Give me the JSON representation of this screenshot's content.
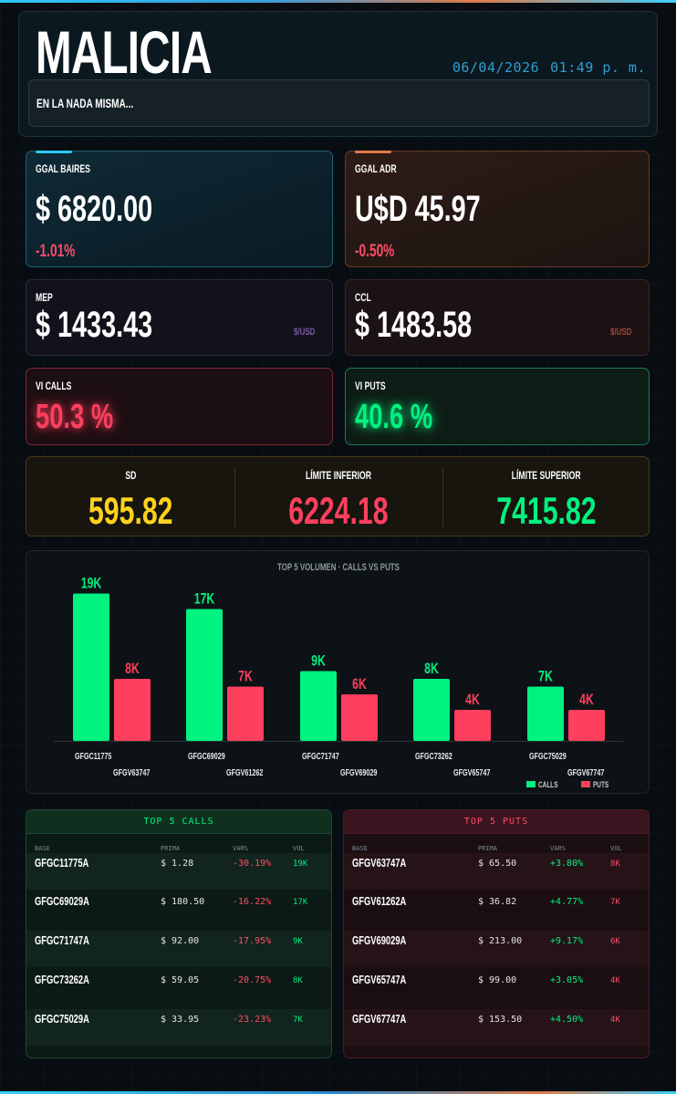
{
  "header": {
    "brand": "MALICIA",
    "date": "06/04/2026",
    "time": "01:49 p. m.",
    "tagline": "EN LA NADA MISMA..."
  },
  "cards": {
    "ggal_baires": {
      "label": "GGAL BAIRES",
      "value": "$ 6820.00",
      "change": "-1.01%"
    },
    "ggal_adr": {
      "label": "GGAL ADR",
      "value": "U$D 45.97",
      "change": "-0.50%"
    },
    "mep": {
      "label": "MEP",
      "value": "$ 1433.43",
      "unit": "$/USD"
    },
    "ccl": {
      "label": "CCL",
      "value": "$ 1483.58",
      "unit": "$/USD"
    },
    "vi_calls": {
      "label": "VI CALLS",
      "value": "50.3 %"
    },
    "vi_puts": {
      "label": "VI PUTS",
      "value": "40.6 %"
    }
  },
  "stats": {
    "sd": {
      "label": "SD",
      "value": "595.82"
    },
    "lower": {
      "label": "LÍMITE INFERIOR",
      "value": "6224.18"
    },
    "upper": {
      "label": "LÍMITE SUPERIOR",
      "value": "7415.82"
    }
  },
  "colors": {
    "calls": "#00f27f",
    "puts": "#ff3f5e",
    "sd": "#ffd21e",
    "accent_blue": "#2ec8ff",
    "accent_orange": "#e07a4a"
  },
  "chart_data": {
    "type": "bar",
    "title": "TOP 5 VOLUMEN · CALLS VS PUTS",
    "categories": [
      {
        "call": "GFGC11775",
        "put": "GFGV63747"
      },
      {
        "call": "GFGC69029",
        "put": "GFGV61262"
      },
      {
        "call": "GFGC71747",
        "put": "GFGV69029"
      },
      {
        "call": "GFGC73262",
        "put": "GFGV65747"
      },
      {
        "call": "GFGC75029",
        "put": "GFGV67747"
      }
    ],
    "series": [
      {
        "name": "CALLS",
        "values": [
          19,
          17,
          9,
          8,
          7
        ],
        "labels": [
          "19K",
          "17K",
          "9K",
          "8K",
          "7K"
        ]
      },
      {
        "name": "PUTS",
        "values": [
          8,
          7,
          6,
          4,
          4
        ],
        "labels": [
          "8K",
          "7K",
          "6K",
          "4K",
          "4K"
        ]
      }
    ],
    "ylim": [
      0,
      20
    ],
    "legend": "bottom-right",
    "legend_labels": [
      "CALLS",
      "PUTS"
    ]
  },
  "tables": {
    "calls": {
      "title": "TOP 5 CALLS",
      "columns": [
        "BASE",
        "PRIMA",
        "VAR%",
        "VOL"
      ],
      "rows": [
        {
          "base": "GFGC11775A",
          "prima": "$ 1.28",
          "var": "-30.19%",
          "vol": "19K"
        },
        {
          "base": "GFGC69029A",
          "prima": "$ 180.50",
          "var": "-16.22%",
          "vol": "17K"
        },
        {
          "base": "GFGC71747A",
          "prima": "$ 92.00",
          "var": "-17.95%",
          "vol": "9K"
        },
        {
          "base": "GFGC73262A",
          "prima": "$ 59.05",
          "var": "-20.75%",
          "vol": "8K"
        },
        {
          "base": "GFGC75029A",
          "prima": "$ 33.95",
          "var": "-23.23%",
          "vol": "7K"
        }
      ]
    },
    "puts": {
      "title": "TOP 5 PUTS",
      "columns": [
        "BASE",
        "PRIMA",
        "VAR%",
        "VOL"
      ],
      "rows": [
        {
          "base": "GFGV63747A",
          "prima": "$ 65.50",
          "var": "+3.80%",
          "vol": "8K"
        },
        {
          "base": "GFGV61262A",
          "prima": "$ 36.82",
          "var": "+4.77%",
          "vol": "7K"
        },
        {
          "base": "GFGV69029A",
          "prima": "$ 213.00",
          "var": "+9.17%",
          "vol": "6K"
        },
        {
          "base": "GFGV65747A",
          "prima": "$ 99.00",
          "var": "+3.05%",
          "vol": "4K"
        },
        {
          "base": "GFGV67747A",
          "prima": "$ 153.50",
          "var": "+4.50%",
          "vol": "4K"
        }
      ]
    }
  }
}
